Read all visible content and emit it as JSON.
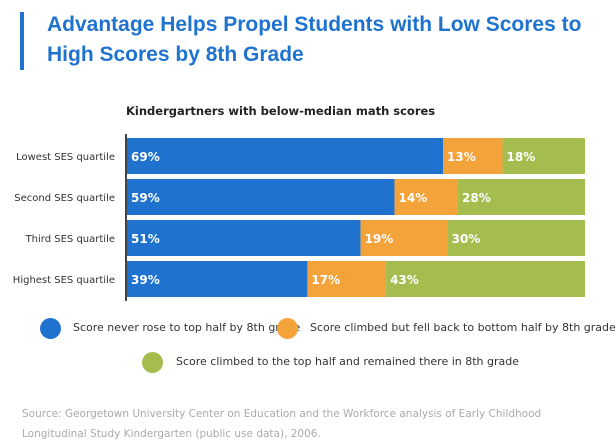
{
  "header": {
    "title": "Advantage Helps Propel Students with Low Scores to High Scores by 8th Grade"
  },
  "chart_data": {
    "type": "bar",
    "orientation": "horizontal",
    "stacked": true,
    "title": "Kindergartners with below-median math scores",
    "categories": [
      "Lowest SES quartile",
      "Second SES quartile",
      "Third SES quartile",
      "Highest SES quartile"
    ],
    "series": [
      {
        "name": "Score never rose to top half by 8th grade",
        "color": "#1f73cf",
        "values": [
          69,
          59,
          51,
          39
        ]
      },
      {
        "name": "Score climbed but fell back to bottom half by 8th grade",
        "color": "#f4a23a",
        "values": [
          13,
          14,
          19,
          17
        ]
      },
      {
        "name": "Score climbed to the top half and remained there in 8th grade",
        "color": "#a5bd4e",
        "values": [
          18,
          28,
          30,
          43
        ]
      }
    ],
    "value_suffix": "%",
    "grid": false,
    "legend_position": "bottom"
  },
  "source": {
    "text": "Source: Georgetown University Center on Education and the Workforce analysis of Early Childhood Longitudinal Study Kindergarten (public use data), 2006."
  }
}
